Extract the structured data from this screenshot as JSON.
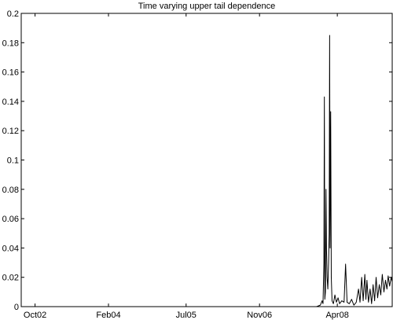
{
  "chart_data": {
    "type": "line",
    "title": "Time varying upper tail dependence",
    "xlabel": "",
    "ylabel": "",
    "x_range": [
      "2002-07-01",
      "2009-04-01"
    ],
    "ylim": [
      0,
      0.2
    ],
    "y_ticks": [
      0,
      0.02,
      0.04,
      0.06,
      0.08,
      0.1,
      0.12,
      0.14,
      0.16,
      0.18,
      0.2
    ],
    "y_tick_labels": [
      "0",
      "0.02",
      "0.04",
      "0.06",
      "0.08",
      "0.1",
      "0.12",
      "0.14",
      "0.16",
      "0.18",
      "0.2"
    ],
    "x_ticks": [
      "2002-10-01",
      "2004-02-01",
      "2005-07-01",
      "2006-11-01",
      "2008-04-01"
    ],
    "x_tick_labels": [
      "Oct02",
      "Feb04",
      "Jul05",
      "Nov06",
      "Apr08"
    ],
    "grid": false,
    "series": [
      {
        "color": "#000000",
        "points": [
          [
            "2002-07-01",
            0
          ],
          [
            "2007-11-15",
            0
          ],
          [
            "2007-12-10",
            0.001
          ],
          [
            "2007-12-22",
            0.004
          ],
          [
            "2007-12-28",
            0.002
          ],
          [
            "2008-01-03",
            0.03
          ],
          [
            "2008-01-06",
            0.143
          ],
          [
            "2008-01-09",
            0.005
          ],
          [
            "2008-01-13",
            0.01
          ],
          [
            "2008-01-17",
            0.08
          ],
          [
            "2008-01-20",
            0.04
          ],
          [
            "2008-01-24",
            0.02
          ],
          [
            "2008-01-29",
            0.012
          ],
          [
            "2008-02-03",
            0.03
          ],
          [
            "2008-02-07",
            0.05
          ],
          [
            "2008-02-10",
            0.185
          ],
          [
            "2008-02-13",
            0.04
          ],
          [
            "2008-02-17",
            0.133
          ],
          [
            "2008-02-21",
            0.02
          ],
          [
            "2008-02-26",
            0.004
          ],
          [
            "2008-03-06",
            0.002
          ],
          [
            "2008-03-16",
            0.008
          ],
          [
            "2008-03-26",
            0.003
          ],
          [
            "2008-04-06",
            0.006
          ],
          [
            "2008-04-16",
            0.002
          ],
          [
            "2008-05-01",
            0.004
          ],
          [
            "2008-05-16",
            0.003
          ],
          [
            "2008-05-26",
            0.029
          ],
          [
            "2008-06-05",
            0.003
          ],
          [
            "2008-06-20",
            0.002
          ],
          [
            "2008-07-05",
            0.005
          ],
          [
            "2008-07-20",
            0.001
          ],
          [
            "2008-08-05",
            0.003
          ],
          [
            "2008-08-20",
            0.012
          ],
          [
            "2008-08-30",
            0.003
          ],
          [
            "2008-09-10",
            0.02
          ],
          [
            "2008-09-20",
            0.004
          ],
          [
            "2008-10-01",
            0.022
          ],
          [
            "2008-10-08",
            0.005
          ],
          [
            "2008-10-15",
            0.018
          ],
          [
            "2008-10-25",
            0.003
          ],
          [
            "2008-11-05",
            0.012
          ],
          [
            "2008-11-15",
            0.002
          ],
          [
            "2008-11-25",
            0.015
          ],
          [
            "2008-12-05",
            0.004
          ],
          [
            "2008-12-15",
            0.02
          ],
          [
            "2008-12-25",
            0.006
          ],
          [
            "2009-01-05",
            0.015
          ],
          [
            "2009-01-15",
            0.008
          ],
          [
            "2009-01-25",
            0.022
          ],
          [
            "2009-02-05",
            0.01
          ],
          [
            "2009-02-15",
            0.018
          ],
          [
            "2009-02-25",
            0.012
          ],
          [
            "2009-03-05",
            0.021
          ],
          [
            "2009-03-15",
            0.014
          ],
          [
            "2009-03-25",
            0.02
          ],
          [
            "2009-04-01",
            0.017
          ]
        ]
      }
    ]
  }
}
